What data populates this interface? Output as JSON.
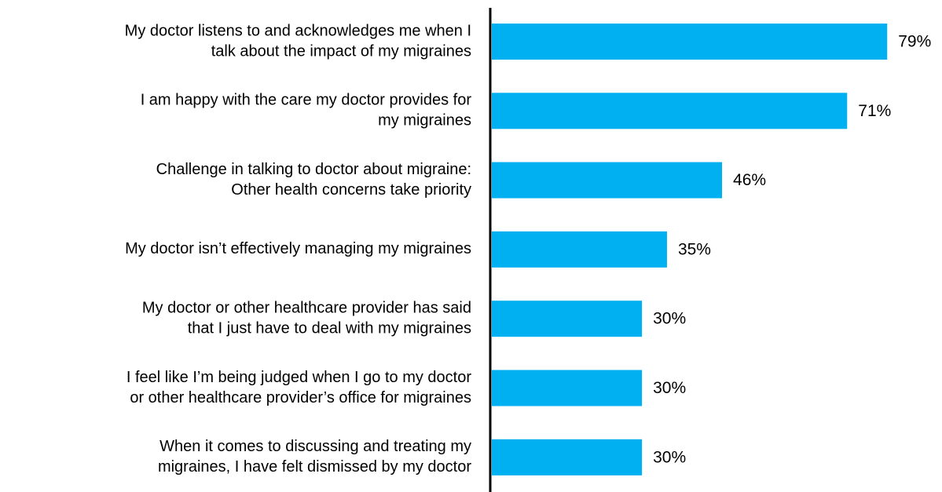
{
  "chart_data": {
    "type": "barh",
    "categories": [
      [
        "My doctor listens to and acknowledges me when I",
        "talk about the impact of my migraines"
      ],
      [
        "I am happy with the care my doctor provides for",
        "my migraines"
      ],
      [
        "Challenge in talking to doctor about migraine:",
        "Other health concerns take priority"
      ],
      [
        "My doctor isn’t effectively managing my migraines"
      ],
      [
        "My doctor or other healthcare provider has said",
        "that I just have to deal with my migraines"
      ],
      [
        "I feel like I’m being judged when I go to my doctor",
        "or other healthcare provider’s office for migraines"
      ],
      [
        "When it comes to discussing and treating my",
        "migraines, I have felt dismissed by my doctor"
      ]
    ],
    "values": [
      79,
      71,
      46,
      35,
      30,
      30,
      30
    ],
    "value_labels": [
      "79%",
      "71%",
      "46%",
      "35%",
      "30%",
      "30%",
      "30%"
    ],
    "color": "#00b0f0"
  }
}
